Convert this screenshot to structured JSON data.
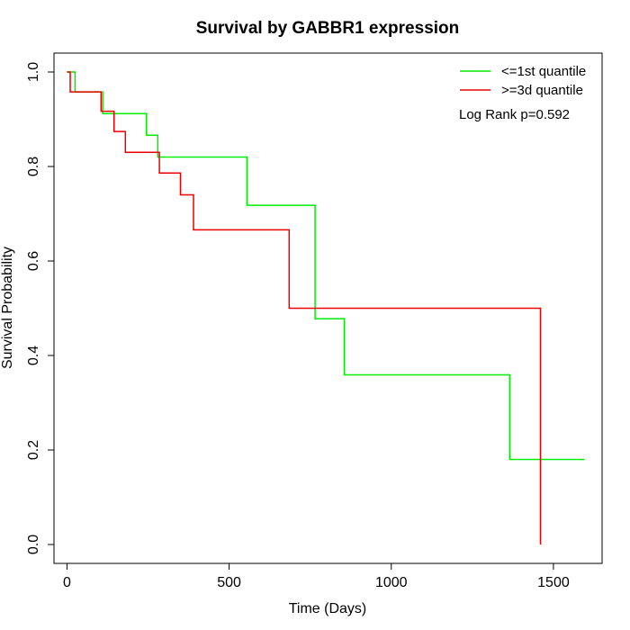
{
  "chart_data": {
    "type": "line",
    "title": "Survival by GABBR1 expression",
    "xlabel": "Time (Days)",
    "ylabel": "Survival Probability",
    "xlim": [
      -40,
      1650
    ],
    "ylim": [
      -0.04,
      1.04
    ],
    "x_ticks": [
      0,
      500,
      1000,
      1500
    ],
    "x_tick_labels": [
      "0",
      "500",
      "1000",
      "1500"
    ],
    "y_ticks": [
      0.0,
      0.2,
      0.4,
      0.6,
      0.8,
      1.0
    ],
    "y_tick_labels": [
      "0.0",
      "0.2",
      "0.4",
      "0.6",
      "0.8",
      "1.0"
    ],
    "grid": false,
    "legend_position": "top-right",
    "annotation": "Log Rank p=0.592",
    "series": [
      {
        "name": "<=1st quantile",
        "color": "#00ee00",
        "step": true,
        "x": [
          0,
          25,
          110,
          245,
          280,
          555,
          765,
          855,
          1365,
          1595
        ],
        "y": [
          1.0,
          0.958,
          0.912,
          0.866,
          0.82,
          0.718,
          0.478,
          0.359,
          0.18,
          0.18
        ]
      },
      {
        "name": ">=3d quantile",
        "color": "#ee0000",
        "step": true,
        "x": [
          0,
          10,
          105,
          145,
          180,
          285,
          350,
          390,
          685,
          1460,
          1460
        ],
        "y": [
          1.0,
          0.958,
          0.917,
          0.874,
          0.83,
          0.786,
          0.74,
          0.666,
          0.5,
          0.5,
          0.0
        ]
      }
    ]
  }
}
